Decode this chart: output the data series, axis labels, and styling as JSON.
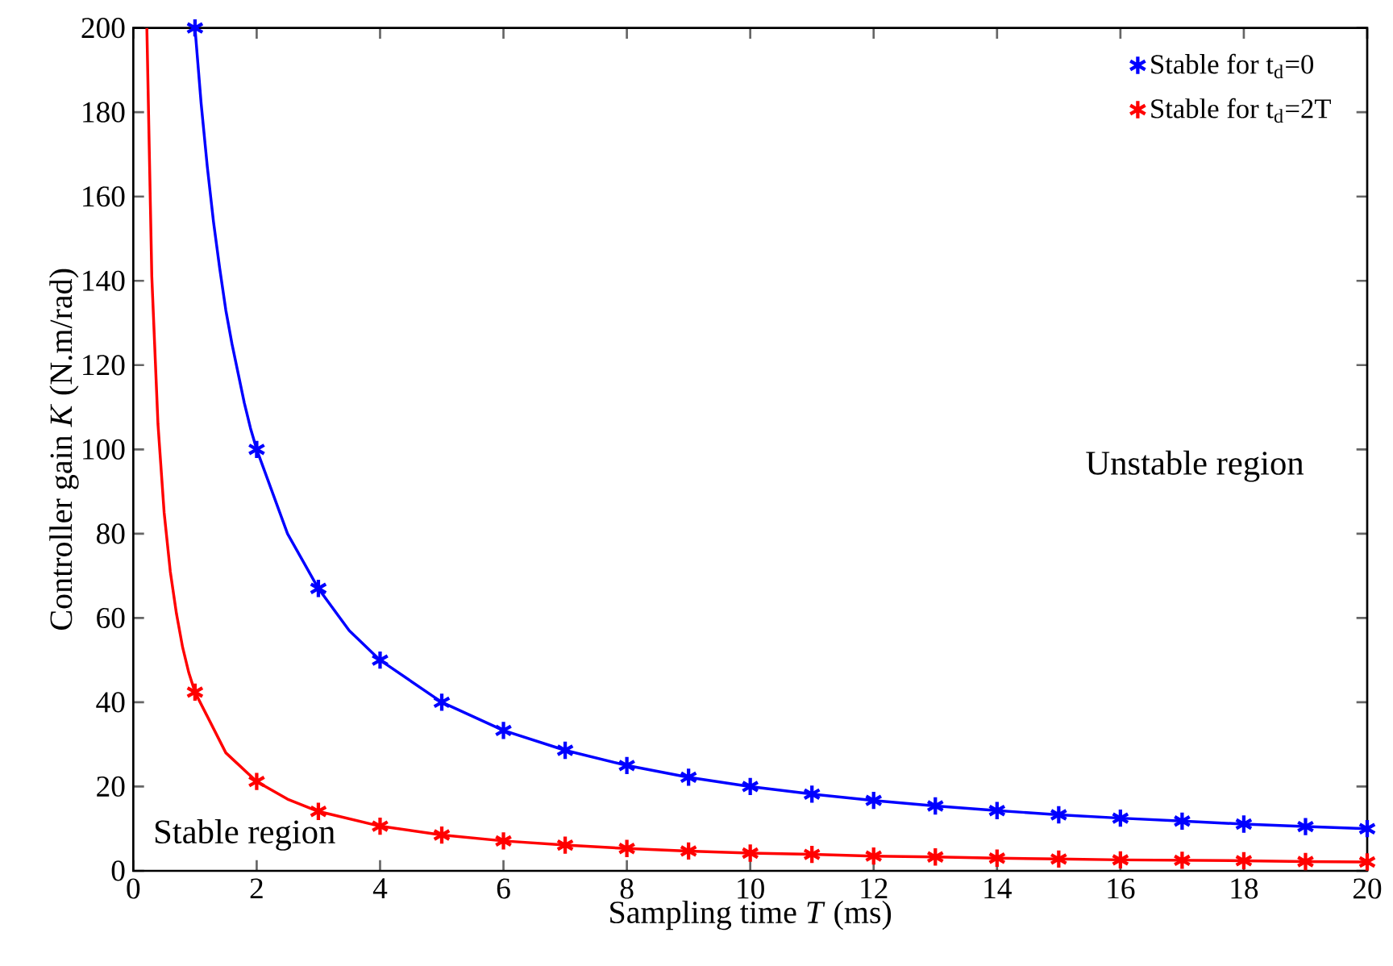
{
  "chart_data": {
    "type": "line",
    "xlabel": "Sampling time  *T*  (ms)",
    "ylabel": "Controller gain  *K*  (N.m/rad)",
    "xlim": [
      0,
      20
    ],
    "ylim": [
      0,
      200
    ],
    "xticks": [
      0,
      2,
      4,
      6,
      8,
      10,
      12,
      14,
      16,
      18,
      20
    ],
    "yticks": [
      0,
      20,
      40,
      60,
      80,
      100,
      120,
      140,
      160,
      180,
      200
    ],
    "grid": false,
    "legend": "top right",
    "annotations": [
      "Unstable region",
      "Stable region"
    ],
    "series": [
      {
        "type": "line",
        "color": "#0000ff",
        "marker": "none",
        "x": [
          1,
          1.1,
          1.2,
          1.3,
          1.4,
          1.5,
          1.6,
          1.7,
          1.8,
          1.9,
          2,
          2.5,
          3,
          3.5,
          4,
          5,
          6,
          7,
          8,
          9,
          10,
          11,
          12,
          13,
          14,
          15,
          16,
          17,
          18,
          19,
          20
        ],
        "values": [
          200,
          182,
          167,
          154,
          143,
          133,
          125,
          118,
          111,
          105,
          100,
          80,
          67,
          57,
          50,
          40,
          33.3,
          28.6,
          25,
          22.2,
          20,
          18.2,
          16.7,
          15.4,
          14.3,
          13.3,
          12.5,
          11.8,
          11.1,
          10.5,
          10
        ]
      },
      {
        "type": "line",
        "color": "#ff0000",
        "marker": "none",
        "x": [
          0.22,
          0.3,
          0.4,
          0.5,
          0.6,
          0.7,
          0.8,
          0.9,
          1,
          1.5,
          2,
          2.5,
          3,
          4,
          5,
          6,
          7,
          8,
          9,
          10,
          11,
          12,
          13,
          14,
          15,
          16,
          17,
          18,
          19,
          20
        ],
        "values": [
          200,
          141,
          106,
          85,
          71,
          61,
          53,
          47,
          42.4,
          28,
          21.2,
          17,
          14.1,
          10.6,
          8.5,
          7.1,
          6.1,
          5.3,
          4.7,
          4.2,
          3.9,
          3.5,
          3.3,
          3,
          2.8,
          2.6,
          2.5,
          2.4,
          2.2,
          2.1
        ]
      },
      {
        "type": "scatter",
        "name": "Stable for t$_{d}$=0",
        "color": "#0000ff",
        "marker": "cross",
        "x": [
          1,
          2,
          3,
          4,
          5,
          6,
          7,
          8,
          9,
          10,
          11,
          12,
          13,
          14,
          15,
          16,
          17,
          18,
          19,
          20
        ],
        "values": [
          200,
          100,
          67,
          50,
          40,
          33.3,
          28.6,
          25,
          22.2,
          20,
          18.2,
          16.7,
          15.4,
          14.3,
          13.3,
          12.5,
          11.8,
          11.1,
          10.5,
          10
        ]
      },
      {
        "type": "scatter",
        "name": "Stable for t$_{d}$=2T",
        "color": "#ff0000",
        "marker": "cross",
        "x": [
          1,
          2,
          3,
          4,
          5,
          6,
          7,
          8,
          9,
          10,
          11,
          12,
          13,
          14,
          15,
          16,
          17,
          18,
          19,
          20
        ],
        "values": [
          42.4,
          21.2,
          14.1,
          10.6,
          8.5,
          7.1,
          6.1,
          5.3,
          4.7,
          4.2,
          3.9,
          3.5,
          3.3,
          3,
          2.8,
          2.6,
          2.5,
          2.4,
          2.2,
          2.1
        ]
      }
    ]
  }
}
